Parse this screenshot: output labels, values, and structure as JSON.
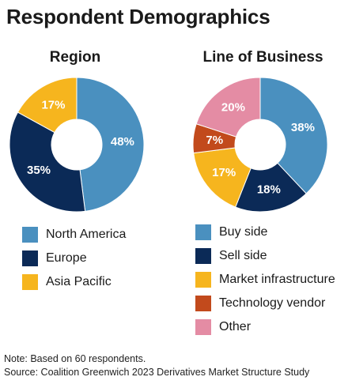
{
  "title": "Respondent Demographics",
  "chart_data": [
    {
      "type": "pie",
      "title": "Region",
      "categories": [
        "North America",
        "Europe",
        "Asia Pacific"
      ],
      "values": [
        48,
        35,
        17
      ],
      "labels": [
        "48%",
        "35%",
        "17%"
      ],
      "colors": [
        "#4a90bf",
        "#0b2a57",
        "#f6b51e"
      ],
      "legend": "below"
    },
    {
      "type": "pie",
      "title": "Line of Business",
      "categories": [
        "Buy side",
        "Sell side",
        "Market infrastructure",
        "Technology vendor",
        "Other"
      ],
      "values": [
        38,
        18,
        17,
        7,
        20
      ],
      "labels": [
        "38%",
        "18%",
        "17%",
        "7%",
        "20%"
      ],
      "colors": [
        "#4a90bf",
        "#0b2a57",
        "#f6b51e",
        "#c24a1c",
        "#e48ca4"
      ],
      "legend": "below"
    }
  ],
  "notes": {
    "note": "Note: Based on 60 respondents.",
    "source": "Source: Coalition Greenwich 2023 Derivatives Market Structure Study"
  }
}
